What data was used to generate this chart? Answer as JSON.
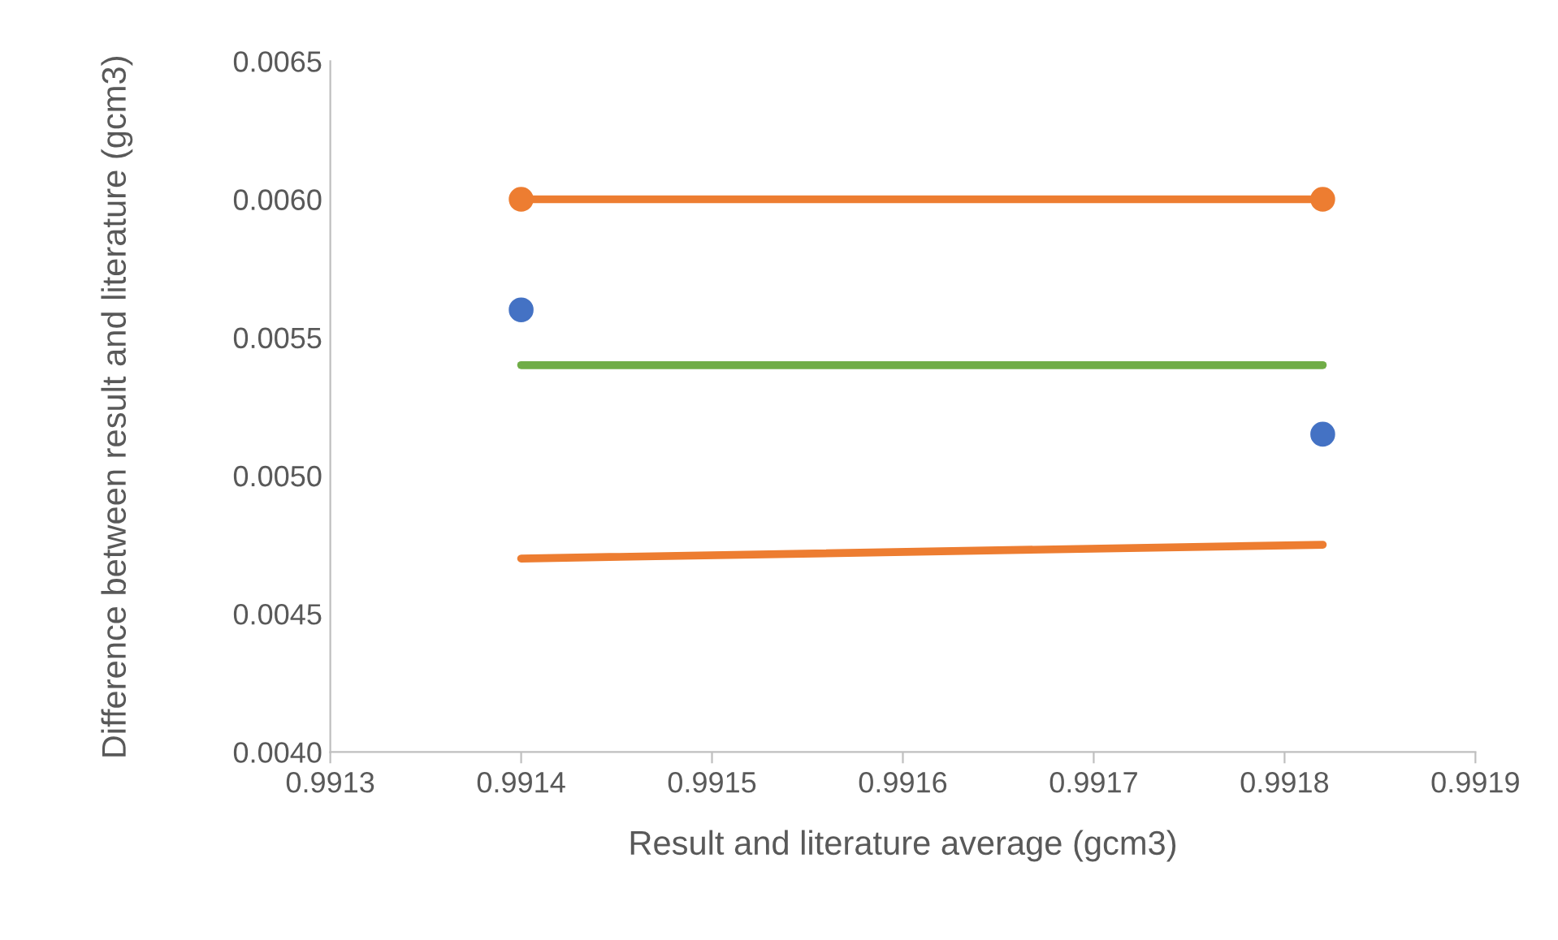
{
  "chart_data": {
    "type": "scatter",
    "xlabel": "Result and literature average (gcm3)",
    "ylabel": "Difference between result and literature (gcm3)",
    "xlim": [
      0.9913,
      0.9919
    ],
    "xticks": [
      0.9913,
      0.9914,
      0.9915,
      0.9916,
      0.9917,
      0.9918,
      0.9919
    ],
    "ylim": [
      0.004,
      0.0065
    ],
    "yticks": [
      {
        "value": 0.004,
        "label": "0.0040"
      },
      {
        "value": 0.0045,
        "label": "0.0045"
      },
      {
        "value": 0.005,
        "label": "0.0050"
      },
      {
        "value": 0.0055,
        "label": "0.0055"
      },
      {
        "value": 0.006,
        "label": "0.0060"
      },
      {
        "value": 0.0065,
        "label": "0.0065"
      }
    ],
    "grid": false,
    "legend": false,
    "x": [
      0.9914,
      0.99182
    ],
    "series": [
      {
        "color": "#4472c4",
        "marker": "circle",
        "values": [
          0.0056,
          0.00515
        ]
      },
      {
        "type": "line",
        "color": "#ed7d31",
        "marker": "circle",
        "values": [
          0.006,
          0.006
        ]
      },
      {
        "type": "line",
        "color": "#70ad47",
        "marker": "none",
        "values": [
          0.0054,
          0.0054
        ]
      },
      {
        "type": "line",
        "color": "#ed7d31",
        "marker": "none",
        "values": [
          0.0047,
          0.00475
        ]
      }
    ]
  }
}
